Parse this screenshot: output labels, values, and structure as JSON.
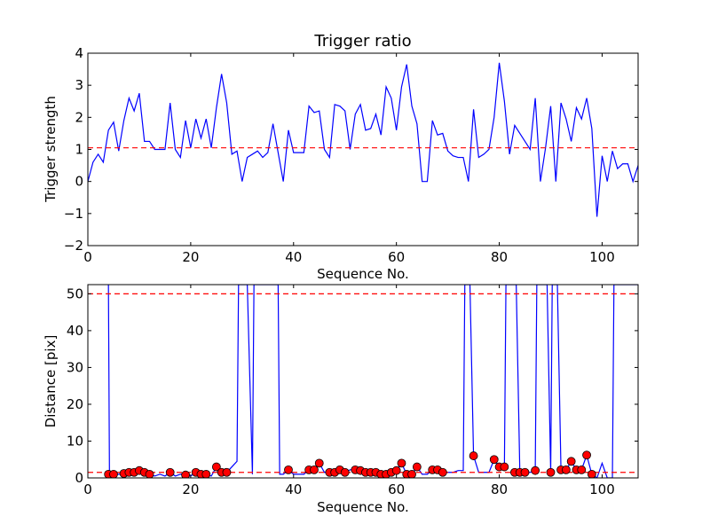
{
  "chart_data": [
    {
      "type": "line",
      "title": "Trigger ratio",
      "xlabel": "Sequence No.",
      "ylabel": "Trigger strength",
      "xlim": [
        0,
        107
      ],
      "ylim": [
        -2,
        4
      ],
      "xticks": [
        0,
        20,
        40,
        60,
        80,
        100
      ],
      "yticks": [
        -2,
        -1,
        0,
        1,
        2,
        3,
        4
      ],
      "grid": false,
      "line_color": "#0000ff",
      "threshold": {
        "value": 1.05,
        "color": "#ff0000",
        "style": "dashed"
      },
      "series": [
        {
          "x": [
            0,
            1,
            2,
            3,
            4,
            5,
            6,
            7,
            8,
            9,
            10,
            11,
            12,
            13,
            14,
            15,
            16,
            17,
            18,
            19,
            20,
            21,
            22,
            23,
            24,
            25,
            26,
            27,
            28,
            29,
            30,
            31,
            32,
            33,
            34,
            35,
            36,
            37,
            38,
            39,
            40,
            41,
            42,
            43,
            44,
            45,
            46,
            47,
            48,
            49,
            50,
            51,
            52,
            53,
            54,
            55,
            56,
            57,
            58,
            59,
            60,
            61,
            62,
            63,
            64,
            65,
            66,
            67,
            68,
            69,
            70,
            71,
            72,
            73,
            74,
            75,
            76,
            77,
            78,
            79,
            80,
            81,
            82,
            83,
            84,
            85,
            86,
            87,
            88,
            89,
            90,
            91,
            92,
            93,
            94,
            95,
            96,
            97,
            98,
            99,
            100,
            101,
            102,
            103,
            104,
            105,
            106,
            107
          ],
          "y": [
            0.0,
            0.6,
            0.85,
            0.6,
            1.6,
            1.85,
            0.95,
            1.9,
            2.6,
            2.2,
            2.75,
            1.25,
            1.25,
            1.0,
            1.0,
            1.0,
            2.45,
            1.0,
            0.75,
            1.9,
            1.05,
            1.95,
            1.35,
            1.95,
            1.05,
            2.3,
            3.35,
            2.45,
            0.85,
            0.95,
            0.0,
            0.75,
            0.85,
            0.95,
            0.75,
            0.9,
            1.8,
            0.9,
            0.0,
            1.6,
            0.9,
            0.9,
            0.9,
            2.35,
            2.15,
            2.2,
            1.0,
            0.75,
            2.4,
            2.35,
            2.2,
            1.0,
            2.1,
            2.4,
            1.6,
            1.65,
            2.1,
            1.45,
            2.95,
            2.6,
            1.6,
            2.95,
            3.65,
            2.35,
            1.8,
            0.0,
            0.0,
            1.9,
            1.45,
            1.5,
            0.95,
            0.8,
            0.75,
            0.75,
            0.0,
            2.25,
            0.75,
            0.85,
            1.0,
            2.0,
            3.7,
            2.5,
            0.85,
            1.75,
            1.5,
            1.25,
            1.0,
            2.6,
            0.0,
            1.05,
            2.35,
            0.0,
            2.45,
            1.95,
            1.25,
            2.3,
            1.95,
            2.6,
            1.65,
            -1.1,
            0.8,
            0.0,
            0.95,
            0.4,
            0.55,
            0.55,
            0.0,
            0.5
          ]
        }
      ]
    },
    {
      "type": "line",
      "title": "",
      "xlabel": "Sequence No.",
      "ylabel": "Distance [pix]",
      "xlim": [
        0,
        107
      ],
      "ylim": [
        0,
        52.5
      ],
      "xticks": [
        0,
        20,
        40,
        60,
        80,
        100
      ],
      "yticks": [
        0,
        10,
        20,
        30,
        40,
        50
      ],
      "grid": false,
      "line_color": "#0000ff",
      "marker_color": "#ff0000",
      "thresholds": [
        {
          "value": 50,
          "color": "#ff0000",
          "style": "dashed"
        },
        {
          "value": 1.5,
          "color": "#ff0000",
          "style": "dashed"
        }
      ],
      "series": [
        {
          "name": "",
          "x": [
            0,
            1,
            2,
            3,
            4,
            4.2,
            5,
            6,
            7,
            8,
            9,
            10,
            11,
            12,
            13,
            14,
            15,
            16,
            17,
            18,
            19,
            20,
            21,
            22,
            23,
            24,
            25,
            26,
            27,
            28,
            29,
            29.3,
            30,
            31,
            32,
            32.3,
            33,
            34,
            35,
            36,
            37,
            37.3,
            38,
            39,
            40,
            41,
            42,
            43,
            44,
            45,
            46,
            47,
            48,
            49,
            50,
            51,
            52,
            53,
            54,
            55,
            56,
            57,
            58,
            59,
            60,
            61,
            62,
            63,
            64,
            65,
            66,
            67,
            68,
            69,
            70,
            71,
            72,
            73,
            73.3,
            74,
            74.3,
            75,
            76,
            77,
            78,
            79,
            80,
            81,
            81.3,
            82,
            82.3,
            83,
            83.3,
            84,
            85,
            86,
            87,
            87.3,
            88,
            88.3,
            89,
            89.3,
            90,
            90.3,
            91,
            91.3,
            92,
            93,
            94,
            95,
            96,
            97,
            98,
            99,
            100,
            101,
            102,
            102.3,
            103,
            104,
            105,
            106,
            107
          ],
          "y": [
            null,
            null,
            null,
            null,
            52.5,
            1.0,
            1.0,
            1.0,
            1.2,
            1.5,
            1.5,
            2.0,
            1.5,
            1.0,
            0.5,
            1.0,
            0.5,
            1.5,
            0.5,
            1.0,
            0.8,
            0.5,
            1.5,
            1.0,
            1.0,
            0.5,
            3.0,
            1.5,
            1.5,
            3.0,
            4.5,
            52.5,
            52.5,
            52.5,
            1.0,
            52.5,
            52.5,
            52.5,
            52.5,
            52.5,
            52.5,
            1.0,
            1.0,
            2.2,
            1.0,
            1.0,
            1.0,
            2.2,
            2.2,
            4.0,
            1.5,
            1.5,
            2.2,
            1.5,
            1.5,
            2.2,
            2.2,
            2.0,
            1.5,
            1.5,
            1.5,
            1.0,
            1.0,
            1.5,
            2.0,
            4.0,
            1.0,
            1.0,
            3.0,
            1.0,
            1.0,
            2.2,
            2.2,
            1.5,
            1.5,
            1.5,
            2.0,
            2.0,
            52.5,
            52.5,
            52.5,
            6.0,
            1.5,
            1.5,
            1.5,
            5.0,
            3.0,
            3.0,
            52.5,
            52.5,
            52.5,
            52.5,
            52.5,
            1.5,
            1.5,
            1.5,
            2.0,
            52.5,
            52.5,
            52.5,
            52.5,
            52.5,
            1.5,
            52.5,
            52.5,
            52.5,
            2.2,
            2.2,
            4.5,
            2.2,
            2.2,
            6.2,
            1.0,
            0.0,
            4.0,
            0.0,
            0.0,
            52.5,
            52.5,
            52.5,
            52.5,
            52.5,
            52.5
          ],
          "markers": [
            [
              4,
              1.0
            ],
            [
              5,
              1.0
            ],
            [
              7,
              1.2
            ],
            [
              8,
              1.5
            ],
            [
              9,
              1.5
            ],
            [
              10,
              2.0
            ],
            [
              11,
              1.5
            ],
            [
              12,
              1.0
            ],
            [
              16,
              1.5
            ],
            [
              19,
              0.8
            ],
            [
              21,
              1.5
            ],
            [
              22,
              1.0
            ],
            [
              23,
              1.0
            ],
            [
              25,
              3.0
            ],
            [
              26,
              1.5
            ],
            [
              27,
              1.5
            ],
            [
              39,
              2.2
            ],
            [
              43,
              2.2
            ],
            [
              44,
              2.2
            ],
            [
              45,
              4.0
            ],
            [
              47,
              1.5
            ],
            [
              48,
              1.5
            ],
            [
              49,
              2.2
            ],
            [
              50,
              1.5
            ],
            [
              52,
              2.2
            ],
            [
              53,
              2.0
            ],
            [
              54,
              1.5
            ],
            [
              55,
              1.5
            ],
            [
              56,
              1.5
            ],
            [
              57,
              1.0
            ],
            [
              58,
              1.0
            ],
            [
              59,
              1.5
            ],
            [
              60,
              2.0
            ],
            [
              61,
              4.0
            ],
            [
              62,
              1.0
            ],
            [
              63,
              1.0
            ],
            [
              64,
              3.0
            ],
            [
              67,
              2.2
            ],
            [
              68,
              2.2
            ],
            [
              69,
              1.5
            ],
            [
              75,
              6.0
            ],
            [
              79,
              5.0
            ],
            [
              80,
              3.0
            ],
            [
              81,
              3.0
            ],
            [
              83,
              1.5
            ],
            [
              84,
              1.5
            ],
            [
              85,
              1.5
            ],
            [
              87,
              2.0
            ],
            [
              90,
              1.5
            ],
            [
              92,
              2.2
            ],
            [
              93,
              2.2
            ],
            [
              94,
              4.5
            ],
            [
              95,
              2.2
            ],
            [
              96,
              2.2
            ],
            [
              97,
              6.2
            ],
            [
              98,
              1.0
            ]
          ]
        }
      ]
    }
  ]
}
